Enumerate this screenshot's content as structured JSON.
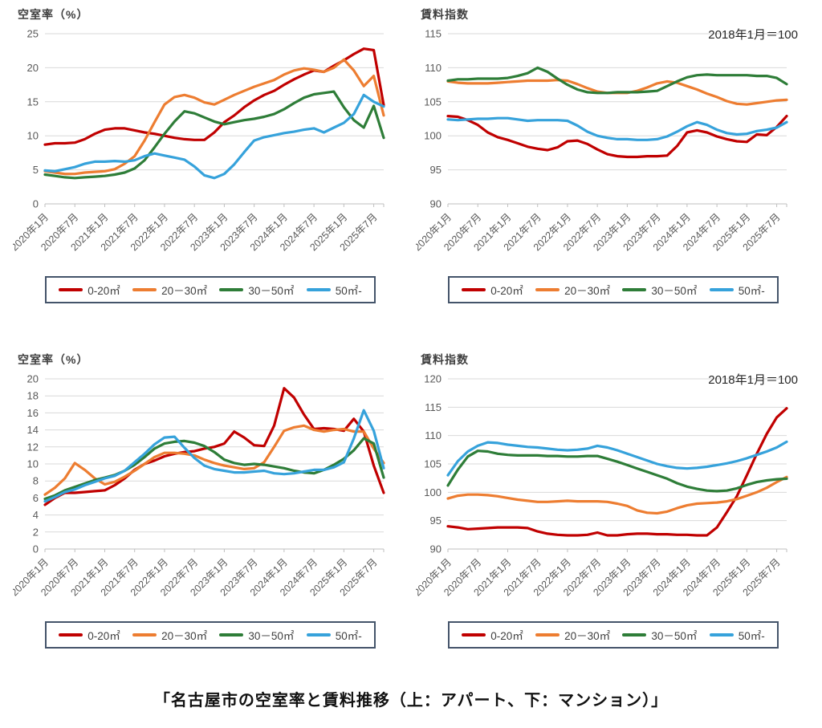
{
  "page": {
    "caption": "「名古屋市の空室率と賃料推移（上：アパート、下：マンション）」"
  },
  "colors": {
    "series_red": "#c00000",
    "series_orange": "#ed7d31",
    "series_green": "#2e7d38",
    "series_blue": "#36a2db",
    "gridline": "#d9d9d9",
    "axis": "#bfbfbf",
    "title_text": "#3f3f3f",
    "tick_text": "#595959",
    "legend_border": "#44546a",
    "caption_text": "#111111"
  },
  "x_tick_labels": [
    "2020年1月",
    "2020年7月",
    "2021年1月",
    "2021年7月",
    "2022年1月",
    "2022年7月",
    "2023年1月",
    "2023年7月",
    "2024年1月",
    "2024年7月",
    "2025年1月",
    "2025年7月"
  ],
  "series_names": [
    "0-20㎡",
    "20－30㎡",
    "30－50㎡",
    "50㎡-"
  ],
  "chart_data": [
    {
      "id": "apartment-vacancy",
      "type": "line",
      "title": "空室率（%）",
      "subtitle": "",
      "ylabel": "空室率（%）",
      "ylim": [
        0,
        25
      ],
      "ystep": 5,
      "grid": "horizontal",
      "legend_position": "bottom",
      "x_interval_months": 2,
      "series": [
        {
          "name": "0-20㎡",
          "color": "#c00000",
          "values": [
            8.7,
            8.9,
            8.9,
            9.0,
            9.5,
            10.3,
            10.9,
            11.1,
            11.1,
            10.8,
            10.5,
            10.3,
            10.0,
            9.7,
            9.5,
            9.4,
            9.4,
            10.5,
            12.0,
            13.0,
            14.2,
            15.2,
            16.0,
            16.6,
            17.5,
            18.3,
            19.0,
            19.6,
            19.4,
            20.3,
            21.1,
            22.0,
            22.8,
            22.6,
            14.5
          ]
        },
        {
          "name": "20－30㎡",
          "color": "#ed7d31",
          "values": [
            4.8,
            4.6,
            4.4,
            4.4,
            4.6,
            4.7,
            4.8,
            5.1,
            5.9,
            7.0,
            9.3,
            12.0,
            14.6,
            15.7,
            16.0,
            15.6,
            14.9,
            14.6,
            15.3,
            16.0,
            16.6,
            17.2,
            17.7,
            18.2,
            19.0,
            19.6,
            19.9,
            19.7,
            19.4,
            20.0,
            21.2,
            19.6,
            17.3,
            18.8,
            13.0
          ]
        },
        {
          "name": "30－50㎡",
          "color": "#2e7d38",
          "values": [
            4.3,
            4.1,
            3.9,
            3.8,
            3.9,
            4.0,
            4.1,
            4.3,
            4.6,
            5.2,
            6.4,
            8.3,
            10.3,
            12.1,
            13.6,
            13.3,
            12.7,
            12.1,
            11.7,
            12.0,
            12.3,
            12.5,
            12.8,
            13.2,
            13.9,
            14.8,
            15.6,
            16.1,
            16.3,
            16.5,
            14.2,
            12.3,
            11.2,
            14.4,
            9.7
          ]
        },
        {
          "name": "50㎡-",
          "color": "#36a2db",
          "values": [
            4.9,
            4.8,
            5.1,
            5.4,
            5.9,
            6.2,
            6.2,
            6.3,
            6.2,
            6.4,
            7.0,
            7.4,
            7.1,
            6.8,
            6.5,
            5.5,
            4.2,
            3.8,
            4.4,
            5.8,
            7.6,
            9.3,
            9.8,
            10.1,
            10.4,
            10.6,
            10.9,
            11.1,
            10.5,
            11.2,
            11.9,
            13.2,
            16.0,
            15.0,
            14.3
          ]
        }
      ]
    },
    {
      "id": "apartment-rent-index",
      "type": "line",
      "title": "賃料指数",
      "subtitle": "2018年1月＝100",
      "ylabel": "賃料指数",
      "ylim": [
        90,
        115
      ],
      "ystep": 5,
      "grid": "horizontal",
      "legend_position": "bottom",
      "x_interval_months": 2,
      "series": [
        {
          "name": "0-20㎡",
          "color": "#c00000",
          "values": [
            102.9,
            102.8,
            102.3,
            101.6,
            100.5,
            99.8,
            99.4,
            98.9,
            98.4,
            98.1,
            97.9,
            98.3,
            99.2,
            99.3,
            98.8,
            98.0,
            97.3,
            97.0,
            96.9,
            96.9,
            97.0,
            97.0,
            97.1,
            98.5,
            100.5,
            100.8,
            100.5,
            99.9,
            99.5,
            99.2,
            99.1,
            100.2,
            100.1,
            101.3,
            102.9
          ]
        },
        {
          "name": "20－30㎡",
          "color": "#ed7d31",
          "values": [
            108.0,
            107.8,
            107.7,
            107.7,
            107.7,
            107.8,
            107.9,
            108.0,
            108.1,
            108.1,
            108.1,
            108.2,
            108.1,
            107.6,
            107.0,
            106.5,
            106.3,
            106.3,
            106.3,
            106.6,
            107.1,
            107.7,
            108.0,
            107.8,
            107.3,
            106.8,
            106.2,
            105.7,
            105.1,
            104.7,
            104.6,
            104.8,
            105.0,
            105.2,
            105.3
          ]
        },
        {
          "name": "30－50㎡",
          "color": "#2e7d38",
          "values": [
            108.1,
            108.3,
            108.3,
            108.4,
            108.4,
            108.4,
            108.5,
            108.8,
            109.2,
            110.0,
            109.4,
            108.4,
            107.5,
            106.8,
            106.4,
            106.3,
            106.3,
            106.4,
            106.4,
            106.4,
            106.5,
            106.6,
            107.3,
            108.0,
            108.6,
            108.9,
            109.0,
            108.9,
            108.9,
            108.9,
            108.9,
            108.8,
            108.8,
            108.5,
            107.6
          ]
        },
        {
          "name": "50㎡-",
          "color": "#36a2db",
          "values": [
            102.4,
            102.3,
            102.4,
            102.5,
            102.5,
            102.6,
            102.6,
            102.4,
            102.2,
            102.3,
            102.3,
            102.3,
            102.2,
            101.5,
            100.6,
            100.0,
            99.7,
            99.5,
            99.5,
            99.4,
            99.4,
            99.5,
            99.9,
            100.6,
            101.4,
            102.0,
            101.6,
            100.9,
            100.4,
            100.2,
            100.3,
            100.7,
            100.9,
            101.2,
            102.0
          ]
        }
      ]
    },
    {
      "id": "mansion-vacancy",
      "type": "line",
      "title": "空室率（%）",
      "subtitle": "",
      "ylabel": "空室率（%）",
      "ylim": [
        0,
        20
      ],
      "ystep": 2,
      "grid": "horizontal",
      "legend_position": "bottom",
      "x_interval_months": 2,
      "series": [
        {
          "name": "0-20㎡",
          "color": "#c00000",
          "values": [
            5.2,
            6.0,
            6.6,
            6.6,
            6.7,
            6.8,
            6.9,
            7.5,
            8.3,
            9.3,
            10.0,
            10.4,
            10.9,
            11.2,
            11.4,
            11.5,
            11.8,
            12.0,
            12.4,
            13.8,
            13.1,
            12.2,
            12.1,
            14.5,
            18.9,
            17.8,
            15.8,
            14.1,
            14.2,
            14.1,
            13.9,
            15.3,
            13.8,
            9.8,
            6.6
          ]
        },
        {
          "name": "20－30㎡",
          "color": "#ed7d31",
          "values": [
            6.4,
            7.2,
            8.3,
            10.1,
            9.3,
            8.3,
            7.6,
            7.9,
            8.5,
            9.2,
            10.0,
            10.8,
            11.3,
            11.3,
            11.2,
            11.0,
            10.5,
            10.1,
            9.8,
            9.6,
            9.4,
            9.5,
            10.2,
            12.0,
            13.9,
            14.3,
            14.5,
            14.0,
            13.8,
            14.0,
            14.1,
            13.8,
            13.8,
            11.8,
            10.1
          ]
        },
        {
          "name": "30－50㎡",
          "color": "#2e7d38",
          "values": [
            5.9,
            6.3,
            6.9,
            7.3,
            7.7,
            8.1,
            8.4,
            8.7,
            9.2,
            9.9,
            10.8,
            11.8,
            12.4,
            12.6,
            12.7,
            12.5,
            12.1,
            11.4,
            10.5,
            10.1,
            9.9,
            10.0,
            9.9,
            9.7,
            9.5,
            9.2,
            9.0,
            8.9,
            9.3,
            9.9,
            10.6,
            11.6,
            13.0,
            12.4,
            8.4
          ]
        },
        {
          "name": "50㎡-",
          "color": "#36a2db",
          "values": [
            5.6,
            6.1,
            6.7,
            7.0,
            7.5,
            7.9,
            8.3,
            8.6,
            9.2,
            10.2,
            11.2,
            12.3,
            13.1,
            13.2,
            11.9,
            10.7,
            9.8,
            9.4,
            9.2,
            9.0,
            9.0,
            9.1,
            9.2,
            8.9,
            8.8,
            8.9,
            9.1,
            9.3,
            9.3,
            9.6,
            10.2,
            13.0,
            16.3,
            13.9,
            9.5
          ]
        }
      ]
    },
    {
      "id": "mansion-rent-index",
      "type": "line",
      "title": "賃料指数",
      "subtitle": "2018年1月＝100",
      "ylabel": "賃料指数",
      "ylim": [
        90,
        120
      ],
      "ystep": 5,
      "grid": "horizontal",
      "legend_position": "bottom",
      "x_interval_months": 2,
      "series": [
        {
          "name": "0-20㎡",
          "color": "#c00000",
          "values": [
            94.0,
            93.8,
            93.5,
            93.6,
            93.7,
            93.8,
            93.8,
            93.8,
            93.7,
            93.1,
            92.7,
            92.5,
            92.4,
            92.4,
            92.5,
            92.9,
            92.4,
            92.4,
            92.6,
            92.7,
            92.7,
            92.6,
            92.6,
            92.5,
            92.5,
            92.4,
            92.4,
            93.8,
            96.5,
            99.3,
            103.0,
            106.8,
            110.3,
            113.2,
            114.8
          ]
        },
        {
          "name": "20－30㎡",
          "color": "#ed7d31",
          "values": [
            98.9,
            99.4,
            99.6,
            99.6,
            99.5,
            99.3,
            99.0,
            98.7,
            98.5,
            98.3,
            98.3,
            98.4,
            98.5,
            98.4,
            98.4,
            98.4,
            98.3,
            98.0,
            97.6,
            96.8,
            96.4,
            96.3,
            96.6,
            97.2,
            97.7,
            98.0,
            98.1,
            98.2,
            98.4,
            98.8,
            99.4,
            100.0,
            100.8,
            101.8,
            102.7
          ]
        },
        {
          "name": "30－50㎡",
          "color": "#2e7d38",
          "values": [
            101.2,
            104.0,
            106.3,
            107.3,
            107.2,
            106.8,
            106.6,
            106.5,
            106.5,
            106.5,
            106.4,
            106.4,
            106.3,
            106.3,
            106.4,
            106.4,
            105.9,
            105.4,
            104.8,
            104.2,
            103.6,
            103.0,
            102.4,
            101.6,
            101.0,
            100.6,
            100.3,
            100.2,
            100.3,
            100.7,
            101.3,
            101.8,
            102.1,
            102.3,
            102.4
          ]
        },
        {
          "name": "50㎡-",
          "color": "#36a2db",
          "values": [
            103.0,
            105.5,
            107.2,
            108.2,
            108.8,
            108.7,
            108.4,
            108.2,
            108.0,
            107.9,
            107.7,
            107.5,
            107.4,
            107.5,
            107.7,
            108.2,
            107.9,
            107.4,
            106.8,
            106.2,
            105.6,
            105.0,
            104.6,
            104.3,
            104.2,
            104.3,
            104.5,
            104.8,
            105.1,
            105.5,
            106.0,
            106.6,
            107.2,
            107.9,
            108.9
          ]
        }
      ]
    }
  ]
}
